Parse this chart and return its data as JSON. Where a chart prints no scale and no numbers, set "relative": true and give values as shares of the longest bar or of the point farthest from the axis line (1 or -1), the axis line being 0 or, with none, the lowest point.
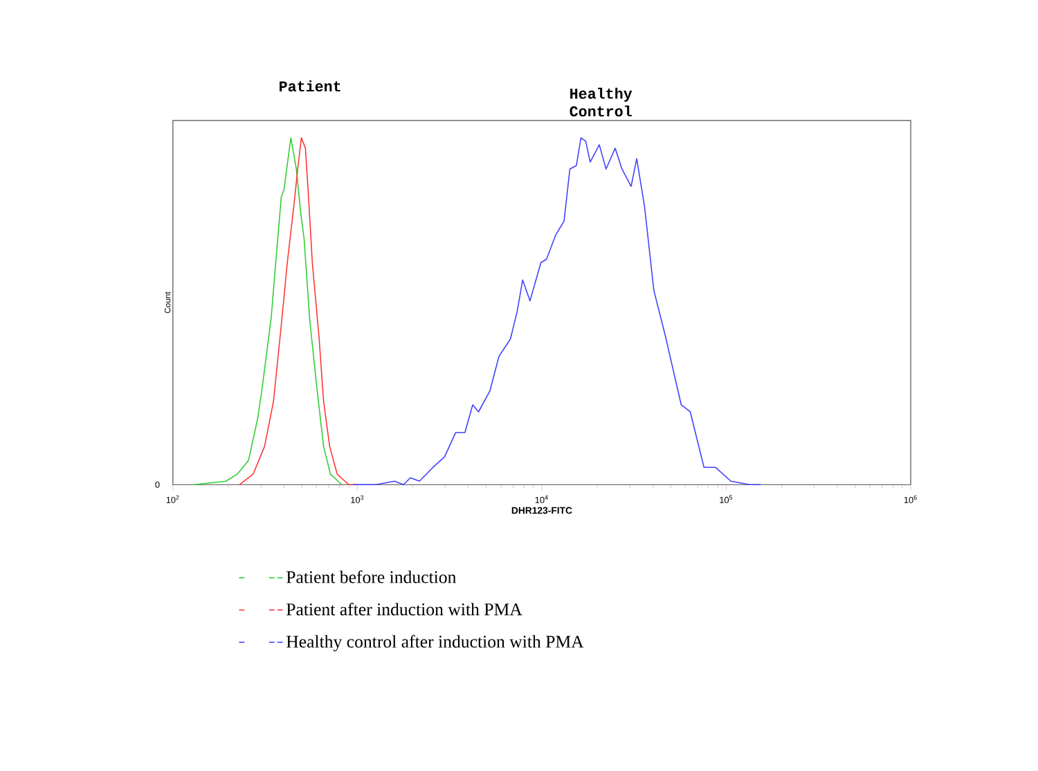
{
  "chart_data": {
    "type": "line",
    "relative": true,
    "log": "x",
    "xlabel": "DHR123-FITC",
    "ylabel": "Count",
    "xlim": [
      100,
      1000000
    ],
    "xticks": [
      {
        "value": 100,
        "label": "10$^{2}$"
      },
      {
        "value": 1000,
        "label": "10$^{3}$"
      },
      {
        "value": 10000,
        "label": "10$^{4}$"
      },
      {
        "value": 100000,
        "label": "10$^{5}$"
      },
      {
        "value": 1000000,
        "label": "10$^{6}$"
      }
    ],
    "annotations": [
      "Patient",
      "Healthy Control",
      "0"
    ],
    "legend": "bottom",
    "series": [
      {
        "name": "Patient before induction",
        "color": "#33cc33",
        "x": [
          130,
          194,
          223,
          257,
          288,
          305,
          341,
          361,
          387,
          400,
          436,
          467,
          494,
          514,
          553,
          603,
          656,
          715,
          824
        ],
        "values": [
          0,
          0.01,
          0.03,
          0.07,
          0.19,
          0.28,
          0.48,
          0.64,
          0.83,
          0.85,
          1,
          0.91,
          0.78,
          0.71,
          0.47,
          0.28,
          0.11,
          0.03,
          0
        ]
      },
      {
        "name": "Patient after induction with PMA",
        "color": "#ff3333",
        "x": [
          230,
          272,
          314,
          351,
          387,
          417,
          454,
          475,
          497,
          523,
          545,
          570,
          621,
          656,
          708,
          778,
          898,
          1000
        ],
        "values": [
          0,
          0.03,
          0.11,
          0.24,
          0.46,
          0.64,
          0.81,
          0.91,
          1,
          0.97,
          0.82,
          0.64,
          0.42,
          0.24,
          0.11,
          0.03,
          0,
          0
        ]
      },
      {
        "name": "Healthy control after induction with PMA",
        "color": "#4040ff",
        "x": [
          950,
          1260,
          1590,
          1780,
          1940,
          2170,
          2570,
          2970,
          3410,
          3830,
          4220,
          4540,
          5230,
          5860,
          6760,
          7360,
          7870,
          8630,
          9890,
          10600,
          11900,
          13200,
          14200,
          15400,
          16300,
          17300,
          18300,
          20500,
          22300,
          25000,
          27200,
          30500,
          32700,
          36100,
          40500,
          46700,
          57000,
          63800,
          75700,
          87300,
          106000,
          134000,
          154000
        ],
        "values": [
          0,
          0,
          0.01,
          0,
          0.02,
          0.01,
          0.05,
          0.08,
          0.15,
          0.15,
          0.23,
          0.21,
          0.27,
          0.37,
          0.42,
          0.5,
          0.59,
          0.53,
          0.64,
          0.65,
          0.72,
          0.76,
          0.91,
          0.92,
          1,
          0.99,
          0.93,
          0.98,
          0.91,
          0.97,
          0.91,
          0.86,
          0.94,
          0.8,
          0.56,
          0.43,
          0.23,
          0.21,
          0.05,
          0.05,
          0.01,
          0,
          0
        ]
      }
    ]
  }
}
